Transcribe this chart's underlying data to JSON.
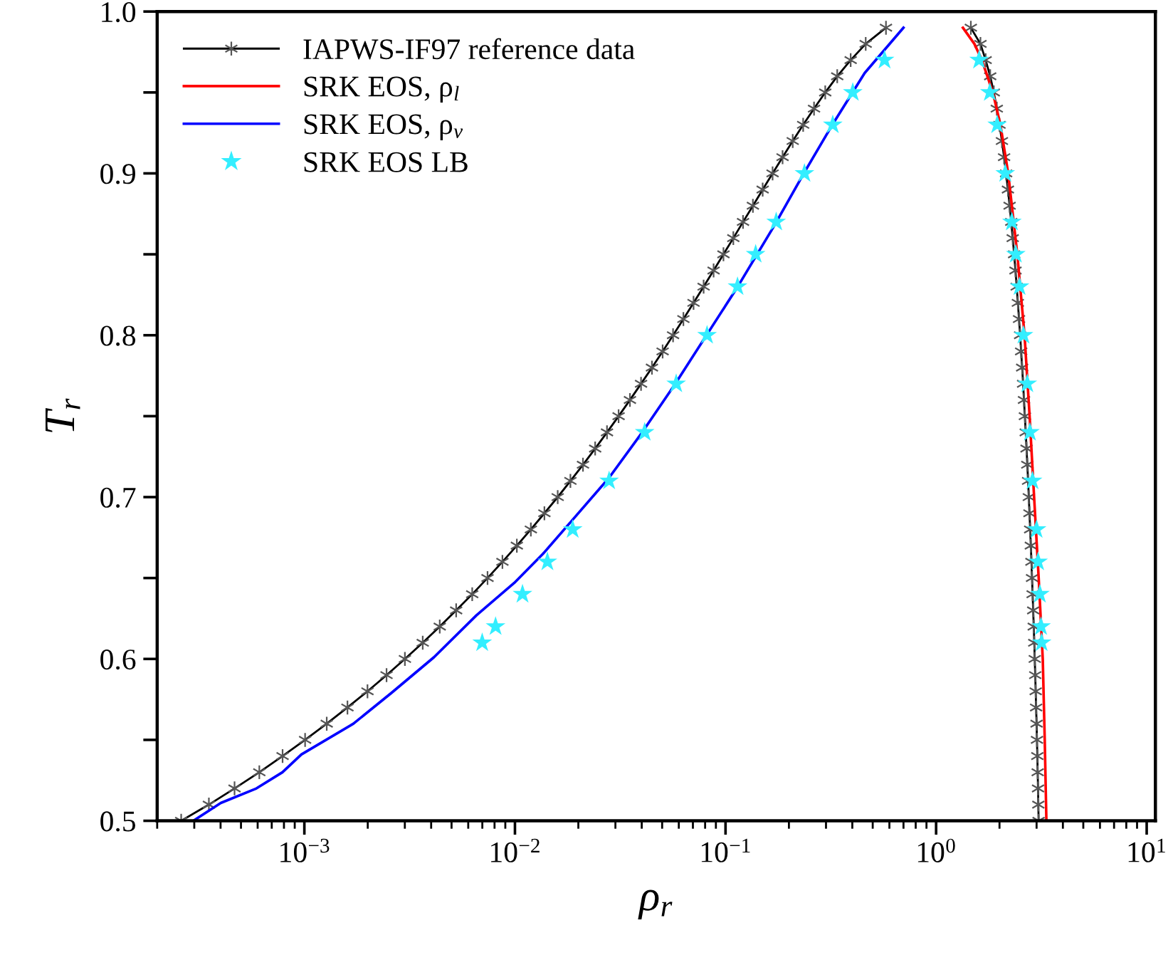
{
  "chart_data": {
    "type": "line",
    "xlabel": "ρ$_{r}$",
    "ylabel": "T$_{r}$",
    "log": "x",
    "xlim": [
      0.0002,
      11
    ],
    "ylim": [
      0.5,
      1.0
    ],
    "xticks": [
      {
        "value": 0.001,
        "label": "10$^{−3}$"
      },
      {
        "value": 0.01,
        "label": "10$^{−2}$"
      },
      {
        "value": 0.1,
        "label": "10$^{−1}$"
      },
      {
        "value": 1,
        "label": "10$^{0}$"
      },
      {
        "value": 10,
        "label": "10$^{1}$"
      }
    ],
    "yticks": [
      0.5,
      {
        "value": 0.55,
        "label": null
      },
      0.6,
      {
        "value": 0.65,
        "label": null
      },
      0.7,
      {
        "value": 0.75,
        "label": null
      },
      0.8,
      {
        "value": 0.85,
        "label": null
      },
      0.9,
      {
        "value": 0.95,
        "label": null
      },
      {
        "value": 1.0,
        "label": "1.0"
      }
    ],
    "grid": false,
    "legend": "top left",
    "series": [
      {
        "name": "IAPWS-IF97 reference data",
        "marker": "cross",
        "color": "#000000",
        "x": [
          0.00026,
          0.000352,
          0.000466,
          0.000611,
          0.000788,
          0.001008,
          0.001277,
          0.001602,
          0.001994,
          0.002456,
          0.003002,
          0.003648,
          0.004394,
          0.005258,
          0.006267,
          0.00741,
          0.00872,
          0.01021,
          0.0119,
          0.0138,
          0.01596,
          0.01834,
          0.02104,
          0.02404,
          0.02736,
          0.03106,
          0.03516,
          0.0397,
          0.04473,
          0.05027,
          0.05635,
          0.06309,
          0.07049,
          0.0787,
          0.08777,
          0.09777,
          0.1089,
          0.1211,
          0.1349,
          0.1501,
          0.1673,
          0.1866,
          0.2085,
          0.2337,
          0.2632,
          0.2975,
          0.3392,
          0.3929,
          0.4631,
          0.578,
          null,
          1.462,
          1.624,
          1.719,
          1.807,
          1.879,
          1.942,
          2.0,
          2.054,
          2.103,
          2.15,
          2.193,
          2.234,
          2.274,
          2.311,
          2.347,
          2.382,
          2.414,
          2.445,
          2.476,
          2.506,
          2.534,
          2.562,
          2.589,
          2.614,
          2.64,
          2.664,
          2.688,
          2.711,
          2.734,
          2.756,
          2.776,
          2.797,
          2.817,
          2.836,
          2.855,
          2.873,
          2.891,
          2.908,
          2.925,
          2.941,
          2.956,
          2.971,
          2.985,
          3.0,
          3.013,
          3.025,
          3.037,
          3.048,
          3.058,
          3.067
        ],
        "values": [
          0.5,
          0.51,
          0.52,
          0.53,
          0.54,
          0.55,
          0.56,
          0.57,
          0.58,
          0.59,
          0.6,
          0.61,
          0.62,
          0.63,
          0.64,
          0.65,
          0.66,
          0.67,
          0.68,
          0.69,
          0.7,
          0.71,
          0.72,
          0.73,
          0.74,
          0.75,
          0.76,
          0.77,
          0.78,
          0.79,
          0.8,
          0.81,
          0.82,
          0.83,
          0.84,
          0.85,
          0.86,
          0.87,
          0.88,
          0.89,
          0.9,
          0.91,
          0.92,
          0.93,
          0.94,
          0.95,
          0.96,
          0.97,
          0.98,
          0.99,
          null,
          0.99,
          0.98,
          0.97,
          0.96,
          0.95,
          0.94,
          0.93,
          0.92,
          0.91,
          0.9,
          0.89,
          0.88,
          0.87,
          0.86,
          0.85,
          0.84,
          0.83,
          0.82,
          0.81,
          0.8,
          0.79,
          0.78,
          0.77,
          0.76,
          0.75,
          0.74,
          0.73,
          0.72,
          0.71,
          0.7,
          0.69,
          0.68,
          0.67,
          0.66,
          0.65,
          0.64,
          0.63,
          0.62,
          0.61,
          0.6,
          0.59,
          0.58,
          0.57,
          0.56,
          0.55,
          0.54,
          0.53,
          0.52,
          0.51,
          0.5
        ]
      },
      {
        "name": "SRK EOS, ρ$_{l}$",
        "marker": "none",
        "color": "#ff0000",
        "x": [
          1.34,
          1.52,
          1.65,
          1.86,
          2.02,
          2.2,
          2.43,
          2.63,
          2.78,
          2.92,
          3.07,
          3.21,
          3.28,
          3.34
        ],
        "values": [
          0.99,
          0.98,
          0.97,
          0.95,
          0.93,
          0.9,
          0.85,
          0.8,
          0.75,
          0.7,
          0.65,
          0.6,
          0.55,
          0.5
        ]
      },
      {
        "name": "SRK EOS, ρ$_{v}$",
        "marker": "none",
        "color": "#0000ff",
        "x": [
          0.000297,
          0.000401,
          0.000592,
          0.000787,
          0.000968,
          0.00171,
          0.00259,
          0.00412,
          0.00657,
          0.00993,
          0.0136,
          0.0185,
          0.028,
          0.0402,
          0.0577,
          0.113,
          0.171,
          0.233,
          0.318,
          0.458,
          0.7
        ],
        "values": [
          0.5,
          0.511,
          0.52,
          0.53,
          0.541,
          0.56,
          0.579,
          0.601,
          0.627,
          0.647,
          0.665,
          0.685,
          0.712,
          0.74,
          0.77,
          0.829,
          0.868,
          0.899,
          0.929,
          0.962,
          0.99
        ]
      },
      {
        "name": "SRK EOS LB",
        "type": "scatter",
        "marker": "star",
        "color": "#33eeff",
        "x": [
          0.00699,
          0.00809,
          0.01086,
          0.01426,
          0.0188,
          0.028,
          0.0413,
          0.0583,
          0.0817,
          0.114,
          0.139,
          0.174,
          0.237,
          0.323,
          0.402,
          0.569,
          1.6,
          1.8,
          1.95,
          2.13,
          2.29,
          2.39,
          2.49,
          2.6,
          2.71,
          2.79,
          2.87,
          3.0,
          3.05,
          3.11,
          3.15,
          3.17
        ],
        "values": [
          0.61,
          0.62,
          0.64,
          0.66,
          0.68,
          0.71,
          0.74,
          0.77,
          0.8,
          0.83,
          0.85,
          0.87,
          0.9,
          0.93,
          0.95,
          0.97,
          0.97,
          0.95,
          0.93,
          0.9,
          0.87,
          0.85,
          0.83,
          0.8,
          0.77,
          0.74,
          0.71,
          0.68,
          0.66,
          0.64,
          0.62,
          0.61
        ]
      }
    ]
  }
}
